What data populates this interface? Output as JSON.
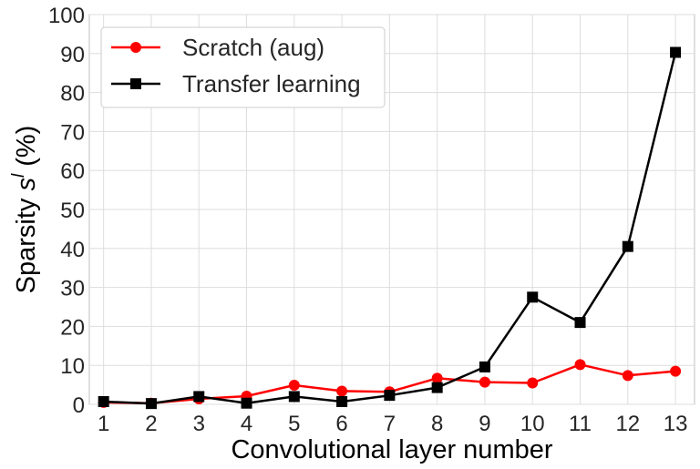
{
  "chart_data": {
    "type": "line",
    "xlabel": "Convolutional layer number",
    "ylabel_prefix": "Sparsity ",
    "ylabel_var": "s",
    "ylabel_sup": "l",
    "ylabel_suffix": " (%)",
    "x": [
      1,
      2,
      3,
      4,
      5,
      6,
      7,
      8,
      9,
      10,
      11,
      12,
      13
    ],
    "xlim": [
      0.7,
      13.4
    ],
    "ylim": [
      0,
      100
    ],
    "yticks": [
      0,
      10,
      20,
      30,
      40,
      50,
      60,
      70,
      80,
      90,
      100
    ],
    "grid": true,
    "legend_position": "top-left",
    "series": [
      {
        "name": "Scratch (aug)",
        "color": "#ff0000",
        "marker": "circle",
        "values": [
          0.5,
          0.3,
          1.4,
          2.1,
          4.9,
          3.4,
          3.2,
          6.7,
          5.7,
          5.5,
          10.2,
          7.4,
          8.5
        ]
      },
      {
        "name": "Transfer learning",
        "color": "#000000",
        "marker": "square",
        "values": [
          0.7,
          0.2,
          2.0,
          0.3,
          2.0,
          0.7,
          2.3,
          4.3,
          9.6,
          27.5,
          21.0,
          40.5,
          90.3
        ]
      }
    ]
  }
}
